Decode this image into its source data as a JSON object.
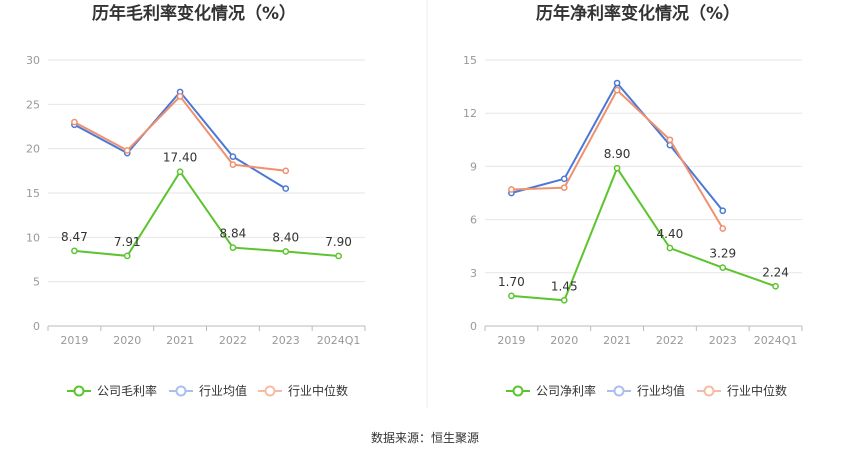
{
  "colors": {
    "company": "#5cc42e",
    "industry_avg": "#4a78d8",
    "industry_median": "#f0906c",
    "grid": "#e6e6e6",
    "axis": "#bbbbbb",
    "divider": "#eeeeee"
  },
  "legend": {
    "gross_company": "公司毛利率",
    "net_company": "公司净利率",
    "industry_avg": "行业均值",
    "industry_median": "行业中位数"
  },
  "source": "数据来源：恒生聚源",
  "chart_data": [
    {
      "type": "line",
      "title": "历年毛利率变化情况（%）",
      "categories": [
        "2019",
        "2020",
        "2021",
        "2022",
        "2023",
        "2024Q1"
      ],
      "ylim": [
        0,
        30
      ],
      "yticks": [
        "0",
        "5",
        "10",
        "15",
        "20",
        "25",
        "30"
      ],
      "series": [
        {
          "name": "公司毛利率",
          "key": "company",
          "labels": true,
          "values": [
            8.47,
            7.91,
            17.4,
            8.84,
            8.4,
            7.9
          ],
          "value_labels": [
            "8.47",
            "7.91",
            "17.40",
            "8.84",
            "8.40",
            "7.90"
          ]
        },
        {
          "name": "行业均值",
          "key": "industry_avg",
          "values": [
            22.7,
            19.5,
            26.4,
            19.1,
            15.5,
            null
          ]
        },
        {
          "name": "行业中位数",
          "key": "industry_median",
          "values": [
            23.0,
            19.8,
            25.9,
            18.2,
            17.5,
            null
          ]
        }
      ]
    },
    {
      "type": "line",
      "title": "历年净利率变化情况（%）",
      "categories": [
        "2019",
        "2020",
        "2021",
        "2022",
        "2023",
        "2024Q1"
      ],
      "ylim": [
        0,
        15
      ],
      "yticks": [
        "0",
        "3",
        "6",
        "9",
        "12",
        "15"
      ],
      "series": [
        {
          "name": "公司净利率",
          "key": "company",
          "labels": true,
          "values": [
            1.7,
            1.45,
            8.9,
            4.4,
            3.29,
            2.24
          ],
          "value_labels": [
            "1.70",
            "1.45",
            "8.90",
            "4.40",
            "3.29",
            "2.24"
          ]
        },
        {
          "name": "行业均值",
          "key": "industry_avg",
          "values": [
            7.5,
            8.3,
            13.7,
            10.2,
            6.5,
            null
          ]
        },
        {
          "name": "行业中位数",
          "key": "industry_median",
          "values": [
            7.7,
            7.8,
            13.3,
            10.5,
            5.5,
            null
          ]
        }
      ]
    }
  ]
}
